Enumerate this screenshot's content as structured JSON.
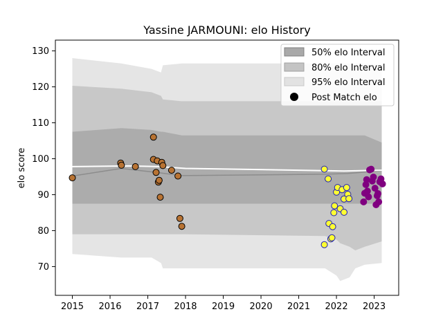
{
  "chart_data": {
    "type": "scatter",
    "title": "Yassine JARMOUNI: elo History",
    "xlabel": "",
    "ylabel": "elo score",
    "xlim": [
      2014.55,
      2023.65
    ],
    "ylim": [
      62,
      133
    ],
    "xticks": [
      2015,
      2016,
      2017,
      2018,
      2019,
      2020,
      2021,
      2022,
      2023
    ],
    "yticks": [
      70,
      80,
      90,
      100,
      110,
      120,
      130
    ],
    "grid": false,
    "legend": {
      "placement": "top-right",
      "entries": [
        "50% elo Interval",
        "80% elo Interval",
        "95% elo Interval",
        "Post Match elo"
      ]
    },
    "colors": {
      "band50": "#a9a9a9",
      "band80": "#c4c4c4",
      "band95": "#e2e2e2",
      "meanLine": "#ffffff",
      "trendLine": "#8c8c8c",
      "brown": "#b87333",
      "yellow": "#ffff33",
      "yellowEdge": "#1f1fb4",
      "purple": "#800080"
    },
    "bands": {
      "x": [
        2015.0,
        2016.3,
        2017.1,
        2017.35,
        2017.4,
        2017.9,
        2021.7,
        2022.0,
        2022.1,
        2022.35,
        2022.5,
        2022.75,
        2023.2
      ],
      "p50lo": [
        87.5,
        87.5,
        87.5,
        87.5,
        87.5,
        87.5,
        87.5,
        87.5,
        87.5,
        87.5,
        87.5,
        87.5,
        87.5
      ],
      "p50hi": [
        107.5,
        108.5,
        108.0,
        107.5,
        107.5,
        106.5,
        106.5,
        106.5,
        106.5,
        106.5,
        106.5,
        106.5,
        104.5
      ],
      "p80lo": [
        79.0,
        79.0,
        79.0,
        79.0,
        79.0,
        79.0,
        78.5,
        77.5,
        76.5,
        75.5,
        74.5,
        75.5,
        77.0
      ],
      "p80hi": [
        120.3,
        119.5,
        118.5,
        117.5,
        116.5,
        116.0,
        116.0,
        116.0,
        116.0,
        116.0,
        116.0,
        116.0,
        116.0
      ],
      "p95lo": [
        73.5,
        72.5,
        72.5,
        71.0,
        69.5,
        69.5,
        69.5,
        67.5,
        66.0,
        67.0,
        69.5,
        70.5,
        71.0
      ],
      "p95hi": [
        128.0,
        126.5,
        125.0,
        124.0,
        126.0,
        126.5,
        126.5,
        126.5,
        126.5,
        126.5,
        126.5,
        126.5,
        126.0
      ]
    },
    "mean_line": {
      "x": [
        2015.0,
        2016.5,
        2017.3,
        2018.0,
        2021.0,
        2022.2,
        2023.2
      ],
      "y": [
        97.8,
        98.0,
        97.8,
        97.3,
        96.8,
        96.6,
        96.8
      ]
    },
    "trend_line": {
      "x": [
        2015.0,
        2016.3,
        2017.3,
        2017.9,
        2021.7,
        2022.3,
        2023.2
      ],
      "y": [
        95.2,
        97.3,
        96.1,
        95.3,
        95.7,
        95.9,
        96.7
      ]
    },
    "series": [
      {
        "color": "brown",
        "points": [
          [
            2015.0,
            94.7
          ],
          [
            2016.28,
            98.8
          ],
          [
            2016.3,
            98.2
          ],
          [
            2016.67,
            97.8
          ],
          [
            2017.15,
            106.0
          ],
          [
            2017.15,
            99.8
          ],
          [
            2017.22,
            96.2
          ],
          [
            2017.25,
            99.4
          ],
          [
            2017.28,
            93.5
          ],
          [
            2017.3,
            94.0
          ],
          [
            2017.33,
            89.3
          ],
          [
            2017.37,
            99.0
          ],
          [
            2017.4,
            98.1
          ],
          [
            2017.63,
            96.8
          ],
          [
            2017.8,
            95.2
          ],
          [
            2017.85,
            83.4
          ],
          [
            2017.9,
            81.2
          ]
        ]
      },
      {
        "color": "yellow",
        "points": [
          [
            2021.68,
            97.1
          ],
          [
            2021.78,
            94.4
          ],
          [
            2021.8,
            82.0
          ],
          [
            2021.85,
            77.7
          ],
          [
            2021.88,
            78.0
          ],
          [
            2021.9,
            81.1
          ],
          [
            2021.93,
            85.0
          ],
          [
            2021.95,
            86.9
          ],
          [
            2022.0,
            90.7
          ],
          [
            2022.03,
            92.0
          ],
          [
            2022.1,
            86.1
          ],
          [
            2022.15,
            91.4
          ],
          [
            2022.2,
            88.8
          ],
          [
            2022.2,
            85.1
          ],
          [
            2022.27,
            92.0
          ],
          [
            2022.3,
            90.1
          ],
          [
            2022.33,
            88.9
          ],
          [
            2021.68,
            76.1
          ]
        ]
      },
      {
        "color": "purple",
        "points": [
          [
            2022.72,
            88.0
          ],
          [
            2022.75,
            90.4
          ],
          [
            2022.78,
            92.8
          ],
          [
            2022.8,
            94.2
          ],
          [
            2022.82,
            91.0
          ],
          [
            2022.85,
            89.4
          ],
          [
            2022.88,
            96.9
          ],
          [
            2022.92,
            97.1
          ],
          [
            2022.95,
            93.8
          ],
          [
            2022.98,
            94.9
          ],
          [
            2023.02,
            91.8
          ],
          [
            2023.05,
            87.2
          ],
          [
            2023.08,
            89.7
          ],
          [
            2023.12,
            88.0
          ],
          [
            2023.15,
            93.6
          ],
          [
            2023.18,
            94.4
          ],
          [
            2023.22,
            93.0
          ],
          [
            2023.1,
            90.3
          ]
        ]
      }
    ]
  }
}
